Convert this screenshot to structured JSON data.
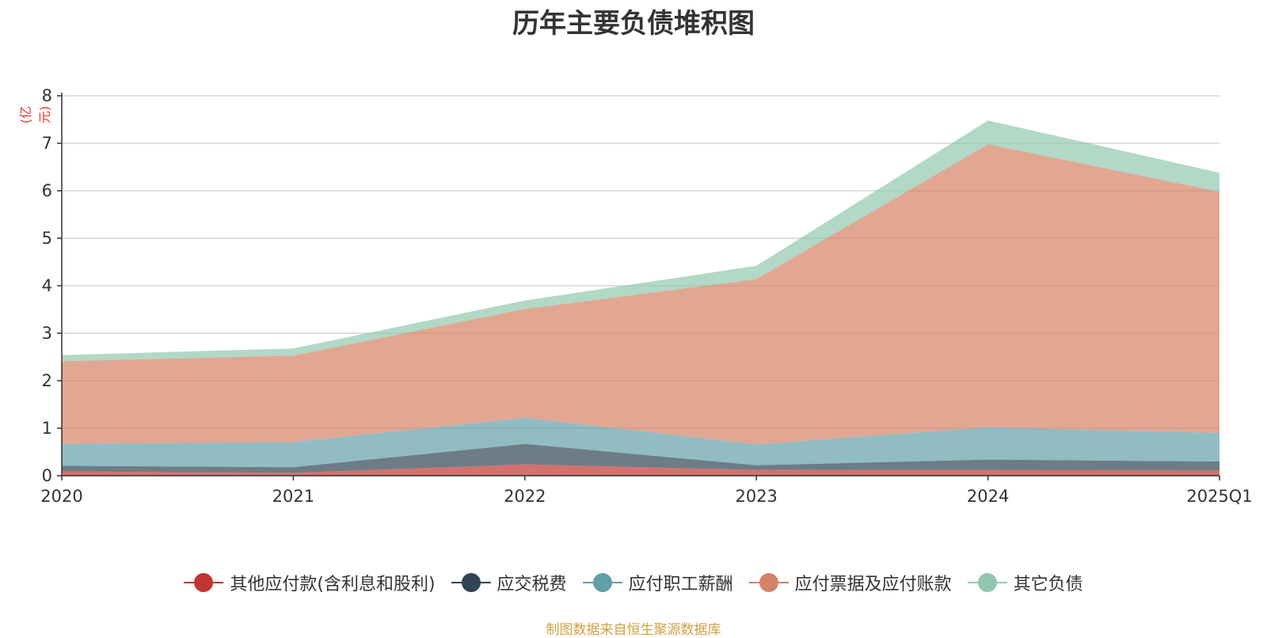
{
  "chart_data": {
    "type": "area",
    "stacked": true,
    "title": "历年主要负债堆积图",
    "unit_label": "(亿元)",
    "categories": [
      "2020",
      "2021",
      "2022",
      "2023",
      "2024",
      "2025Q1"
    ],
    "ylim": [
      0,
      8
    ],
    "yticks": [
      "0",
      "1",
      "2",
      "3",
      "4",
      "5",
      "6",
      "7",
      "8"
    ],
    "grid": true,
    "legend_position": "bottom",
    "series": [
      {
        "name": "其他应付款(含利息和股利)",
        "color": "#c23531",
        "values": [
          0.09,
          0.06,
          0.24,
          0.12,
          0.12,
          0.11
        ]
      },
      {
        "name": "应交税费",
        "color": "#2f4554",
        "values": [
          0.12,
          0.12,
          0.43,
          0.1,
          0.22,
          0.19
        ]
      },
      {
        "name": "应付职工薪酬",
        "color": "#61a0a8",
        "values": [
          0.46,
          0.53,
          0.55,
          0.44,
          0.68,
          0.6
        ]
      },
      {
        "name": "应付票据及应付账款",
        "color": "#d48265",
        "values": [
          1.74,
          1.82,
          2.29,
          3.48,
          5.96,
          5.08
        ]
      },
      {
        "name": "其它负债",
        "color": "#91c7ae",
        "values": [
          0.13,
          0.15,
          0.18,
          0.28,
          0.5,
          0.4
        ]
      }
    ]
  },
  "source_note": "制图数据来自恒生聚源数据库"
}
